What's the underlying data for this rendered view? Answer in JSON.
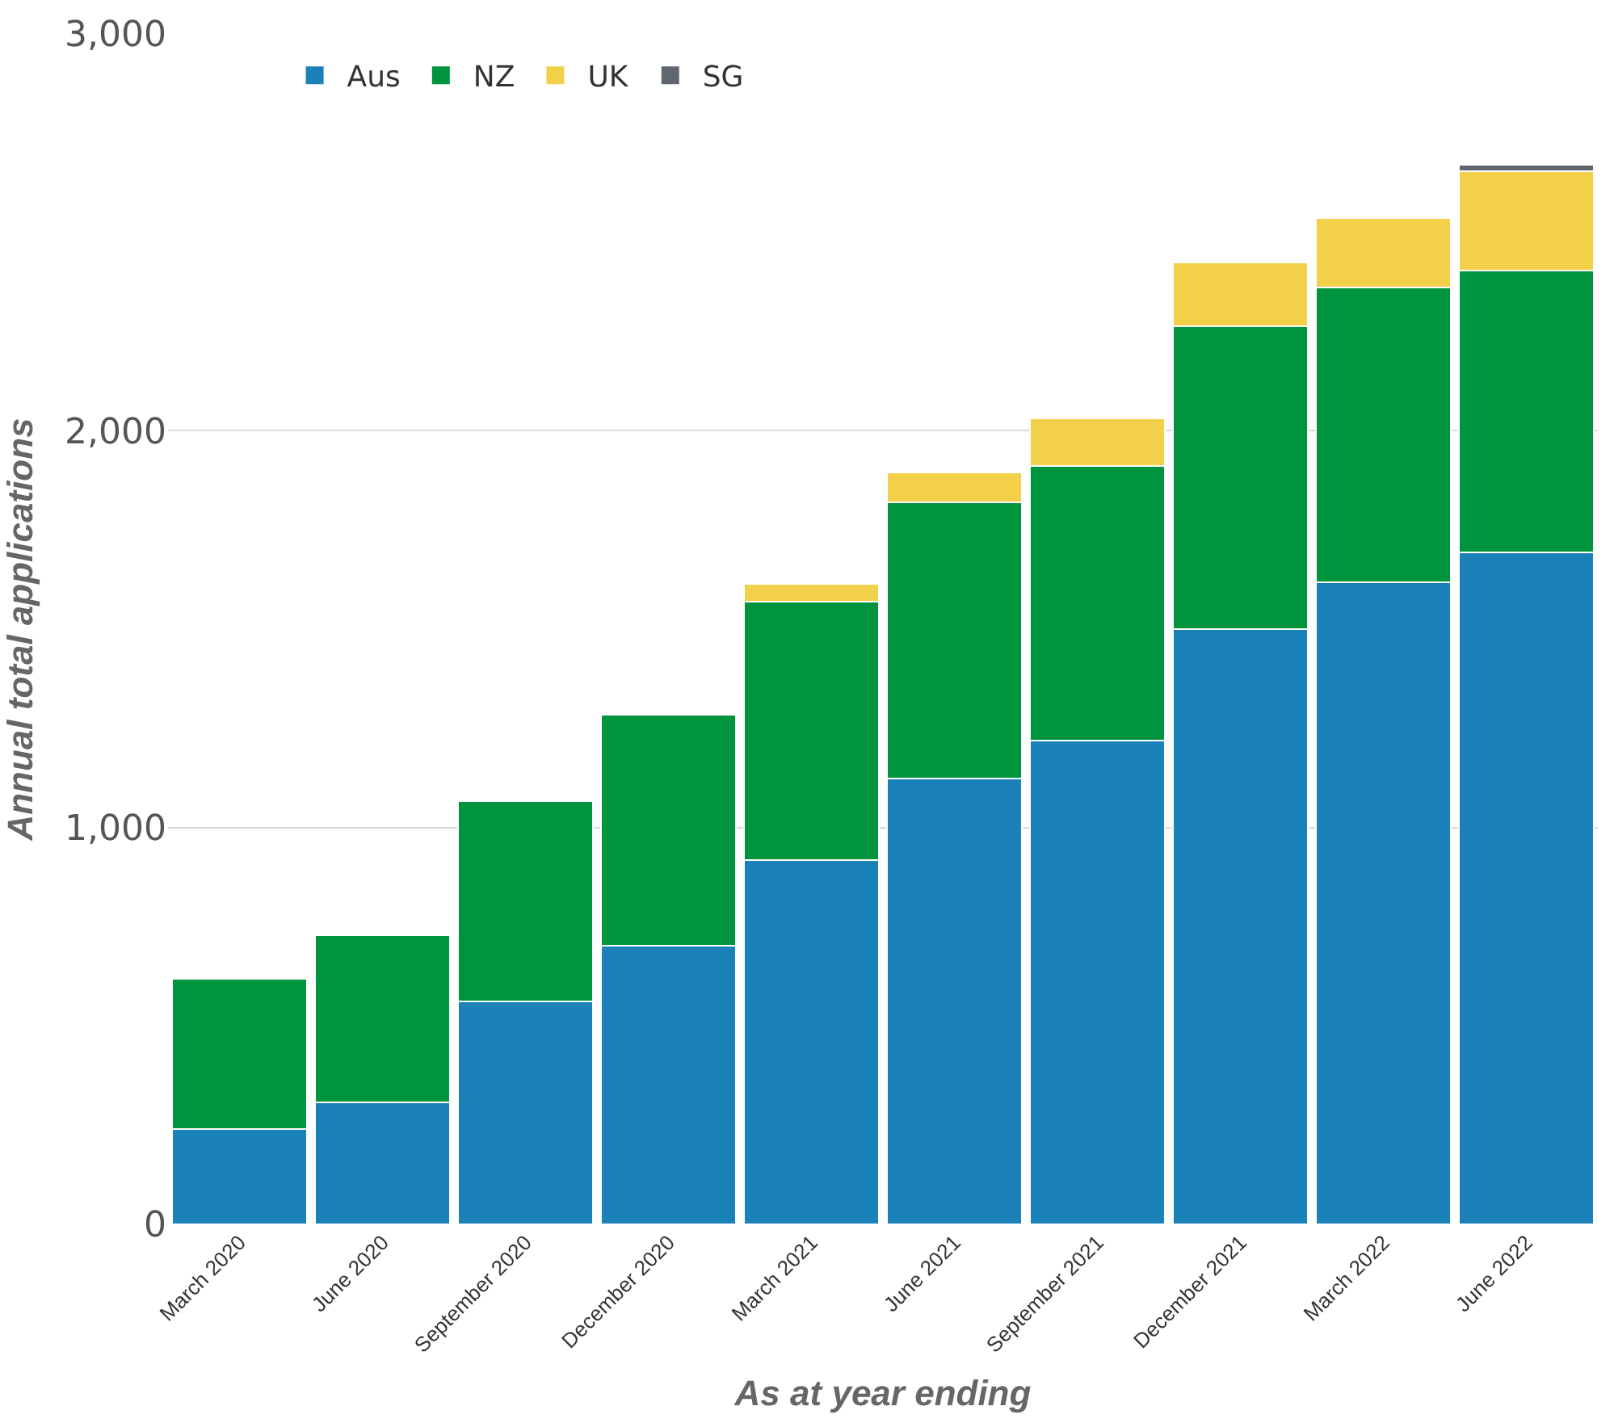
{
  "chart_data": {
    "type": "bar",
    "stacked": true,
    "xlabel": "As at year ending",
    "ylabel": "Annual total applications",
    "categories": [
      "March 2020",
      "June 2020",
      "September 2020",
      "December 2020",
      "March 2021",
      "June 2021",
      "September 2021",
      "December 2021",
      "March 2022",
      "June 2022"
    ],
    "series": [
      {
        "name": "Aus",
        "color": "#1a82b8",
        "values": [
          241,
          307,
          561,
          702,
          917,
          1123,
          1219,
          1500,
          1618,
          1693
        ]
      },
      {
        "name": "NZ",
        "color": "#00943e",
        "values": [
          377,
          421,
          505,
          583,
          653,
          697,
          693,
          763,
          742,
          711
        ]
      },
      {
        "name": "UK",
        "color": "#f3d04a",
        "values": [
          null,
          null,
          null,
          null,
          44,
          75,
          119,
          162,
          175,
          250
        ]
      },
      {
        "name": "SG",
        "color": "#5f6670",
        "values": [
          null,
          null,
          null,
          null,
          null,
          null,
          null,
          null,
          null,
          17
        ]
      }
    ],
    "ylim": [
      0,
      3000
    ],
    "yticks": [
      {
        "value": 0,
        "label": "0"
      },
      {
        "value": 1000,
        "label": "1,000"
      },
      {
        "value": 2000,
        "label": "2,000"
      },
      {
        "value": 3000,
        "label": "3,000"
      }
    ],
    "grid": "y",
    "legend": "top left"
  }
}
